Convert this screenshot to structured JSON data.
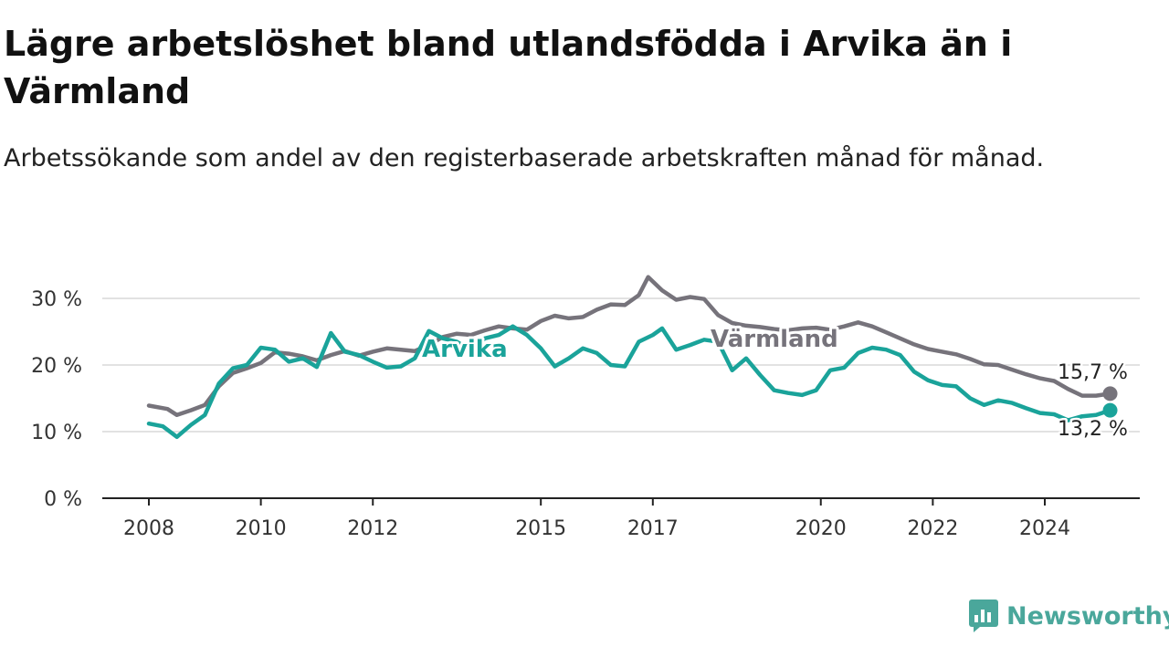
{
  "title": "Lägre arbetslöshet bland utlandsfödda i Arvika än i Värmland",
  "subtitle": "Arbetssökande som andel av den registerbaserade arbetskraften månad för månad.",
  "brand": "Newsworthy",
  "colors": {
    "arvika": "#1aa39a",
    "varmland": "#76737b",
    "brand": "#4aa79b",
    "grid": "#d9d9d9",
    "axis": "#222222"
  },
  "chart_data": {
    "type": "line",
    "title": "Lägre arbetslöshet bland utlandsfödda i Arvika än i Värmland",
    "subtitle": "Arbetssökande som andel av den registerbaserade arbetskraften månad för månad.",
    "xlabel": "",
    "ylabel": "",
    "x_ticks": [
      "2008",
      "2010",
      "2012",
      "2015",
      "2017",
      "2020",
      "2022",
      "2024"
    ],
    "y_ticks": [
      "0 %",
      "10 %",
      "20 %",
      "30 %"
    ],
    "ylim": [
      0,
      35
    ],
    "xlim": [
      "2007-06",
      "2025-07"
    ],
    "grid": true,
    "legend": "inline labels",
    "series": [
      {
        "name": "Värmland",
        "end_label": "15,7 %",
        "points": [
          [
            "2008-01",
            13.9
          ],
          [
            "2008-05",
            13.4
          ],
          [
            "2008-07",
            12.5
          ],
          [
            "2008-10",
            13.2
          ],
          [
            "2009-01",
            14.0
          ],
          [
            "2009-04",
            16.8
          ],
          [
            "2009-07",
            18.8
          ],
          [
            "2009-10",
            19.5
          ],
          [
            "2010-01",
            20.3
          ],
          [
            "2010-04",
            21.9
          ],
          [
            "2010-07",
            21.7
          ],
          [
            "2010-10",
            21.3
          ],
          [
            "2011-01",
            20.7
          ],
          [
            "2011-04",
            21.5
          ],
          [
            "2011-07",
            22.1
          ],
          [
            "2011-10",
            21.4
          ],
          [
            "2012-01",
            22.0
          ],
          [
            "2012-04",
            22.5
          ],
          [
            "2012-07",
            22.3
          ],
          [
            "2012-10",
            22.1
          ],
          [
            "2013-01",
            23.0
          ],
          [
            "2013-04",
            24.2
          ],
          [
            "2013-07",
            24.7
          ],
          [
            "2013-10",
            24.5
          ],
          [
            "2014-01",
            25.2
          ],
          [
            "2014-04",
            25.8
          ],
          [
            "2014-07",
            25.5
          ],
          [
            "2014-10",
            25.3
          ],
          [
            "2015-01",
            26.6
          ],
          [
            "2015-04",
            27.4
          ],
          [
            "2015-07",
            27.0
          ],
          [
            "2015-10",
            27.2
          ],
          [
            "2016-01",
            28.3
          ],
          [
            "2016-04",
            29.1
          ],
          [
            "2016-07",
            29.0
          ],
          [
            "2016-10",
            30.5
          ],
          [
            "2016-12",
            33.2
          ],
          [
            "2017-03",
            31.2
          ],
          [
            "2017-06",
            29.8
          ],
          [
            "2017-09",
            30.2
          ],
          [
            "2017-12",
            29.9
          ],
          [
            "2018-03",
            27.5
          ],
          [
            "2018-06",
            26.3
          ],
          [
            "2018-09",
            25.9
          ],
          [
            "2018-12",
            25.7
          ],
          [
            "2019-03",
            25.4
          ],
          [
            "2019-06",
            25.2
          ],
          [
            "2019-09",
            25.5
          ],
          [
            "2019-12",
            25.6
          ],
          [
            "2020-03",
            25.3
          ],
          [
            "2020-06",
            25.8
          ],
          [
            "2020-09",
            26.4
          ],
          [
            "2020-12",
            25.8
          ],
          [
            "2021-03",
            24.9
          ],
          [
            "2021-06",
            24.0
          ],
          [
            "2021-09",
            23.1
          ],
          [
            "2021-12",
            22.4
          ],
          [
            "2022-03",
            22.0
          ],
          [
            "2022-06",
            21.6
          ],
          [
            "2022-09",
            20.9
          ],
          [
            "2022-12",
            20.1
          ],
          [
            "2023-03",
            20.0
          ],
          [
            "2023-06",
            19.3
          ],
          [
            "2023-09",
            18.6
          ],
          [
            "2023-12",
            18.0
          ],
          [
            "2024-03",
            17.6
          ],
          [
            "2024-06",
            16.4
          ],
          [
            "2024-09",
            15.4
          ],
          [
            "2024-12",
            15.4
          ],
          [
            "2025-03",
            15.7
          ]
        ]
      },
      {
        "name": "Arvika",
        "end_label": "13,2 %",
        "points": [
          [
            "2008-01",
            11.2
          ],
          [
            "2008-04",
            10.8
          ],
          [
            "2008-07",
            9.2
          ],
          [
            "2008-10",
            11.0
          ],
          [
            "2009-01",
            12.5
          ],
          [
            "2009-04",
            17.2
          ],
          [
            "2009-07",
            19.5
          ],
          [
            "2009-10",
            20.0
          ],
          [
            "2010-01",
            22.6
          ],
          [
            "2010-04",
            22.3
          ],
          [
            "2010-07",
            20.5
          ],
          [
            "2010-10",
            21.0
          ],
          [
            "2011-01",
            19.7
          ],
          [
            "2011-04",
            24.8
          ],
          [
            "2011-07",
            22.0
          ],
          [
            "2011-10",
            21.5
          ],
          [
            "2012-01",
            20.5
          ],
          [
            "2012-04",
            19.6
          ],
          [
            "2012-07",
            19.8
          ],
          [
            "2012-10",
            21.0
          ],
          [
            "2013-01",
            25.1
          ],
          [
            "2013-04",
            24.0
          ],
          [
            "2013-07",
            23.5
          ],
          [
            "2013-10",
            22.2
          ],
          [
            "2014-01",
            24.0
          ],
          [
            "2014-04",
            24.5
          ],
          [
            "2014-07",
            25.8
          ],
          [
            "2014-10",
            24.5
          ],
          [
            "2015-01",
            22.5
          ],
          [
            "2015-04",
            19.8
          ],
          [
            "2015-07",
            21.0
          ],
          [
            "2015-10",
            22.5
          ],
          [
            "2016-01",
            21.8
          ],
          [
            "2016-04",
            20.0
          ],
          [
            "2016-07",
            19.8
          ],
          [
            "2016-10",
            23.5
          ],
          [
            "2017-01",
            24.5
          ],
          [
            "2017-03",
            25.5
          ],
          [
            "2017-06",
            22.3
          ],
          [
            "2017-09",
            23.0
          ],
          [
            "2017-12",
            23.8
          ],
          [
            "2018-03",
            23.5
          ],
          [
            "2018-06",
            19.2
          ],
          [
            "2018-09",
            21.0
          ],
          [
            "2018-12",
            18.5
          ],
          [
            "2019-03",
            16.2
          ],
          [
            "2019-06",
            15.8
          ],
          [
            "2019-09",
            15.5
          ],
          [
            "2019-12",
            16.2
          ],
          [
            "2020-03",
            19.2
          ],
          [
            "2020-06",
            19.6
          ],
          [
            "2020-09",
            21.8
          ],
          [
            "2020-12",
            22.6
          ],
          [
            "2021-03",
            22.3
          ],
          [
            "2021-06",
            21.5
          ],
          [
            "2021-09",
            19.0
          ],
          [
            "2021-12",
            17.7
          ],
          [
            "2022-03",
            17.0
          ],
          [
            "2022-06",
            16.8
          ],
          [
            "2022-09",
            15.0
          ],
          [
            "2022-12",
            14.0
          ],
          [
            "2023-03",
            14.7
          ],
          [
            "2023-06",
            14.3
          ],
          [
            "2023-09",
            13.5
          ],
          [
            "2023-12",
            12.8
          ],
          [
            "2024-03",
            12.6
          ],
          [
            "2024-06",
            11.7
          ],
          [
            "2024-09",
            12.3
          ],
          [
            "2024-12",
            12.5
          ],
          [
            "2025-03",
            13.2
          ]
        ]
      }
    ]
  }
}
